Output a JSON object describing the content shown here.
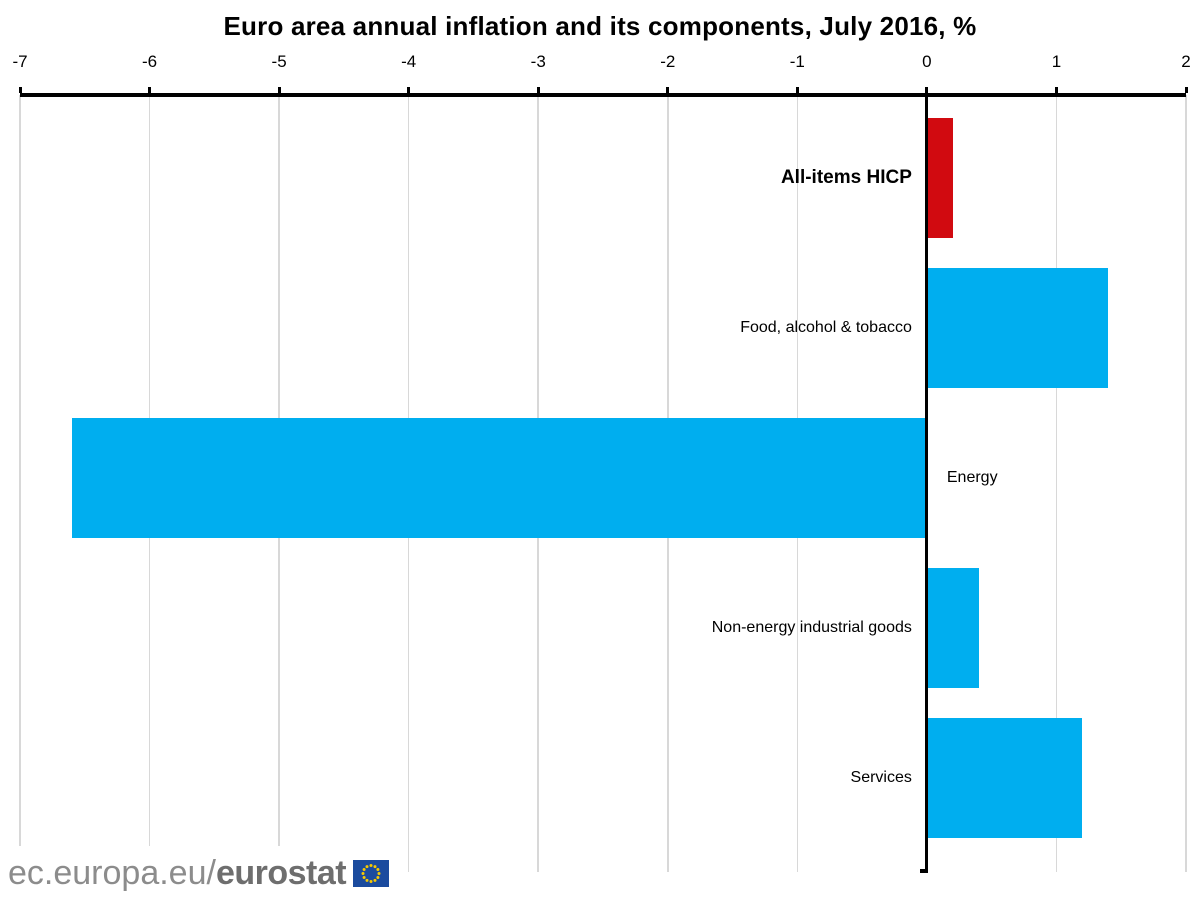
{
  "title": "Euro area annual inflation and its components, July 2016, %",
  "chart_data": {
    "type": "bar",
    "orientation": "horizontal",
    "title": "Euro area annual inflation and its components, July 2016, %",
    "xlabel": "",
    "ylabel": "",
    "unit": "%",
    "xlim": [
      -7,
      2
    ],
    "tick_step": 1,
    "tick_labels": [
      "-7",
      "-6",
      "-5",
      "-4",
      "-3",
      "-2",
      "-1",
      "0",
      "1",
      "2"
    ],
    "grid": true,
    "legend_position": "none",
    "categories": [
      "All-items HICP",
      "Food, alcohol & tobacco",
      "Energy",
      "Non-energy industrial goods",
      "Services"
    ],
    "values": [
      0.2,
      1.4,
      -6.6,
      0.4,
      1.2
    ],
    "bars": [
      {
        "label": "All-items HICP",
        "value": 0.2,
        "color": "#d10a10",
        "emphasis": true
      },
      {
        "label": "Food, alcohol & tobacco",
        "value": 1.4,
        "color": "#00aeef",
        "emphasis": false
      },
      {
        "label": "Energy",
        "value": -6.6,
        "color": "#00aeef",
        "emphasis": false
      },
      {
        "label": "Non-energy industrial goods",
        "value": 0.4,
        "color": "#00aeef",
        "emphasis": false
      },
      {
        "label": "Services",
        "value": 1.2,
        "color": "#00aeef",
        "emphasis": false
      }
    ]
  },
  "footer": {
    "site_regular": "ec.europa.eu/",
    "site_bold": "eurostat"
  },
  "colors": {
    "bar_highlight": "#d10a10",
    "bar_default": "#00aeef",
    "gridline": "#d8d8d8",
    "axis": "#000000",
    "logo_gray": "#8c8c8c",
    "logo_bold_gray": "#6e6e6e",
    "eu_flag_blue": "#1b4b9e",
    "eu_flag_stars": "#f6c900"
  }
}
